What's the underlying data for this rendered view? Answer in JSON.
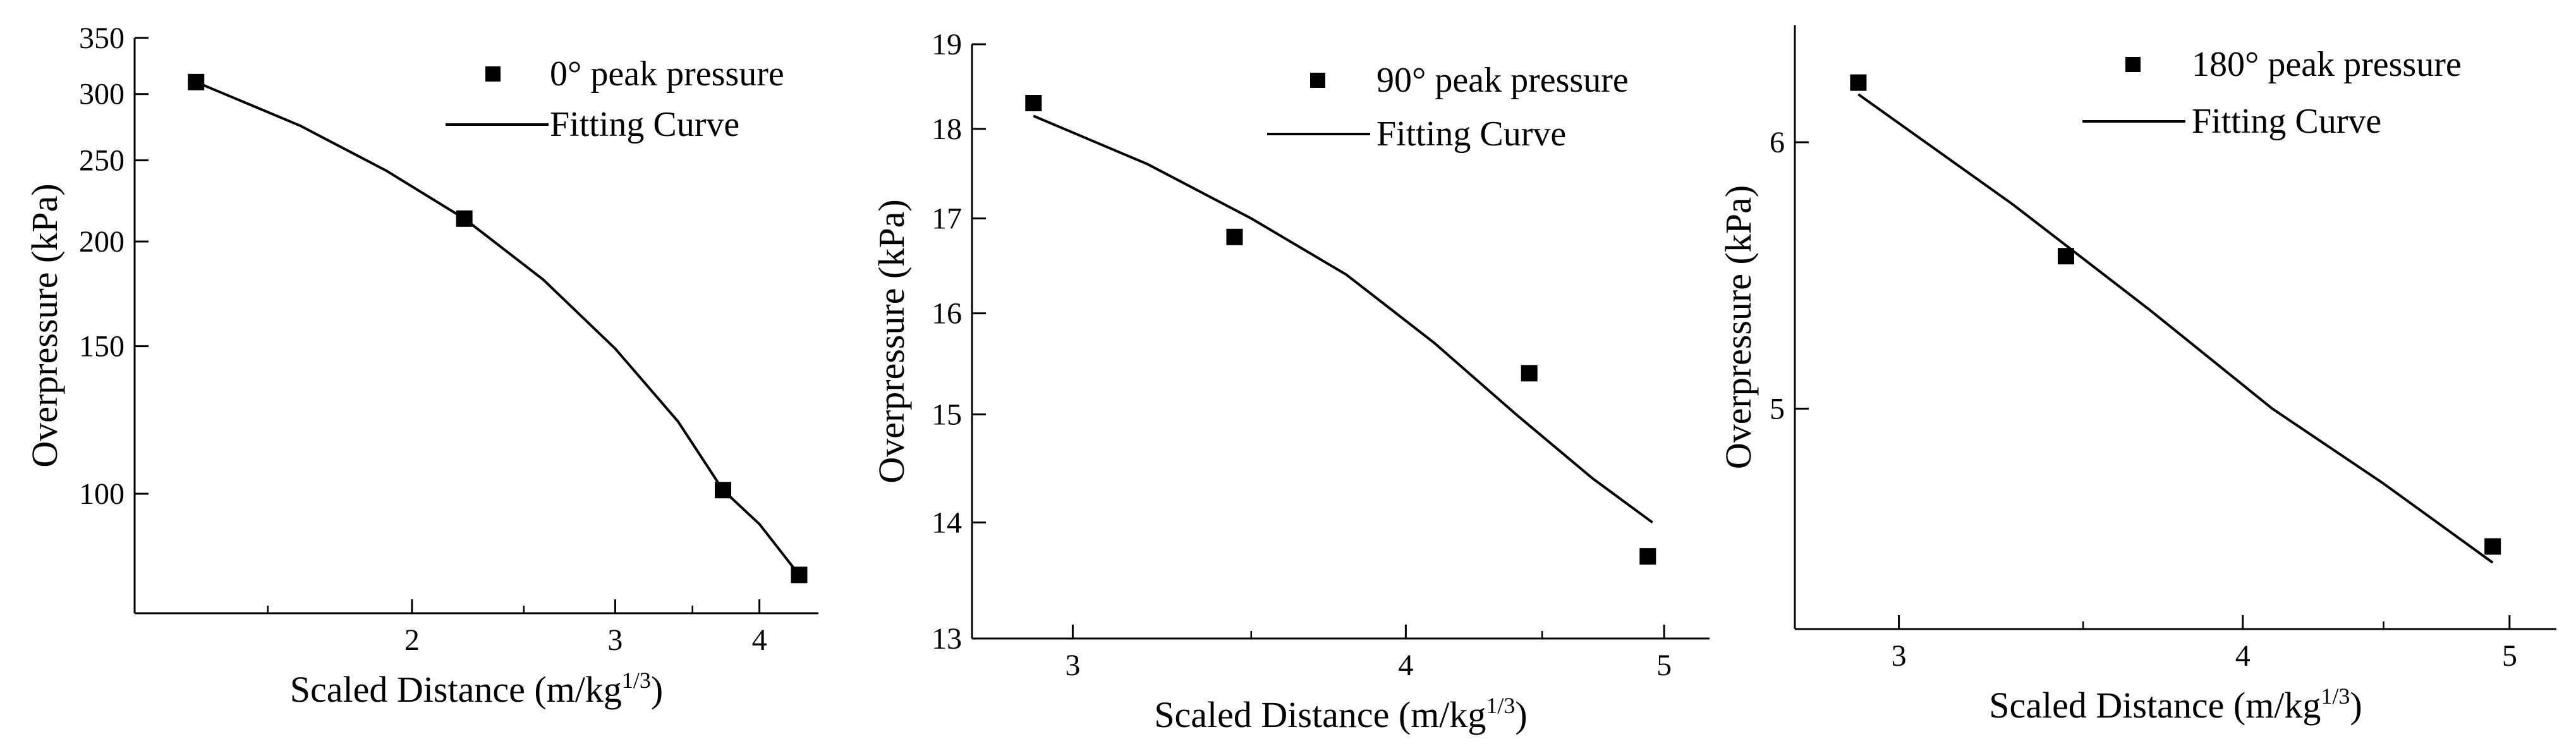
{
  "chart_data": [
    {
      "type": "scatter",
      "xscale": "log",
      "yscale": "log",
      "xlabel": "Scaled Distance (m/kg",
      "xlabel_sup": "1/3",
      "xlabel_end": ")",
      "ylabel": "Overpressure (kPa)",
      "xlim": [
        1.15,
        4.5
      ],
      "ylim": [
        72,
        350
      ],
      "xticks": [
        2,
        3,
        4
      ],
      "xtick_labels": [
        "2",
        "3",
        "4"
      ],
      "yticks": [
        100,
        150,
        200,
        250,
        300,
        350
      ],
      "ytick_labels": [
        "100",
        "150",
        "200",
        "250",
        "300",
        "350"
      ],
      "legend": {
        "position": "top-right",
        "marker_label": "0° peak pressure",
        "line_label": "Fitting Curve"
      },
      "series": [
        {
          "name": "0° peak pressure",
          "kind": "scatter",
          "x": [
            1.3,
            2.22,
            3.72,
            4.33
          ],
          "y": [
            310,
            213,
            101,
            80
          ]
        },
        {
          "name": "Fitting Curve",
          "kind": "line",
          "x": [
            1.3,
            1.6,
            1.9,
            2.22,
            2.6,
            3.0,
            3.4,
            3.72,
            4.0,
            4.33
          ],
          "y": [
            310,
            275,
            243,
            213,
            180,
            149,
            122,
            101,
            92,
            80
          ]
        }
      ]
    },
    {
      "type": "scatter",
      "xscale": "log",
      "yscale": "log",
      "xlabel": "Scaled Distance (m/kg",
      "xlabel_sup": "1/3",
      "xlabel_end": ")",
      "ylabel": "Overpressure (kPa)",
      "xlim": [
        2.75,
        5.2
      ],
      "ylim": [
        13,
        19
      ],
      "xticks": [
        3,
        4,
        5
      ],
      "xtick_labels": [
        "3",
        "4",
        "5"
      ],
      "yticks": [
        13,
        14,
        15,
        16,
        17,
        18,
        19
      ],
      "ytick_labels": [
        "13",
        "14",
        "15",
        "16",
        "17",
        "18",
        "19"
      ],
      "legend": {
        "position": "top-right",
        "marker_label": "90° peak pressure",
        "line_label": "Fitting Curve"
      },
      "series": [
        {
          "name": "90° peak pressure",
          "kind": "scatter",
          "x": [
            2.9,
            3.45,
            4.45,
            4.93
          ],
          "y": [
            18.3,
            16.8,
            15.4,
            13.7
          ]
        },
        {
          "name": "Fitting Curve",
          "kind": "line",
          "x": [
            2.9,
            3.2,
            3.5,
            3.8,
            4.1,
            4.4,
            4.7,
            4.95
          ],
          "y": [
            18.15,
            17.6,
            17.0,
            16.4,
            15.7,
            15.0,
            14.4,
            14.0
          ]
        }
      ]
    },
    {
      "type": "scatter",
      "xscale": "log",
      "yscale": "log",
      "xlabel": "Scaled Distance (m/kg",
      "xlabel_sup": "1/3",
      "xlabel_end": ")",
      "ylabel": "Overpressure (kPa)",
      "xlim": [
        2.75,
        5.2
      ],
      "ylim": [
        4.3,
        6.5
      ],
      "xticks": [
        3,
        4,
        5
      ],
      "xtick_labels": [
        "3",
        "4",
        "5"
      ],
      "yticks": [
        5,
        6
      ],
      "ytick_labels": [
        "5",
        "6"
      ],
      "legend": {
        "position": "top-right",
        "marker_label": "180° peak pressure",
        "line_label": "Fitting Curve"
      },
      "series": [
        {
          "name": "180° peak pressure",
          "kind": "scatter",
          "x": [
            2.9,
            3.45,
            4.93
          ],
          "y": [
            6.25,
            5.55,
            4.55
          ]
        },
        {
          "name": "Fitting Curve",
          "kind": "line",
          "x": [
            2.9,
            3.3,
            3.7,
            4.1,
            4.5,
            4.93
          ],
          "y": [
            6.2,
            5.75,
            5.35,
            5.0,
            4.75,
            4.5
          ]
        }
      ]
    }
  ]
}
